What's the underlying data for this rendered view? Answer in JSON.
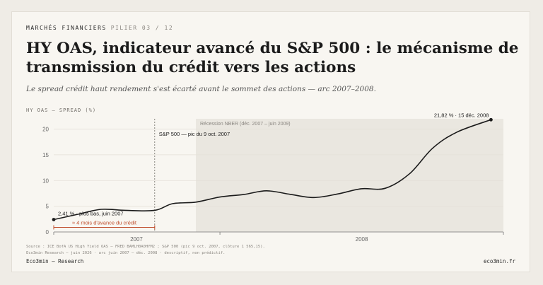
{
  "header": {
    "kicker": "MARCHÉS FINANCIERS",
    "kicker_sub": "PILIER 03 / 12",
    "title": "HY OAS, indicateur avancé du S&P 500 : le mécanisme de transmission du crédit vers les actions",
    "subtitle": "Le spread crédit haut rendement s'est écarté avant le sommet des actions — arc 2007–2008."
  },
  "chart_data": {
    "type": "line",
    "ylabel": "HY OAS — SPREAD (%)",
    "ylim": [
      0,
      22
    ],
    "yticks": [
      0,
      5,
      10,
      15,
      20
    ],
    "xlim": [
      "2007-06-01",
      "2008-12-31"
    ],
    "xticks": [
      "2007",
      "2008"
    ],
    "grid": true,
    "series": [
      {
        "color": "#1b1b1b",
        "points": [
          [
            "2007-06-01",
            2.41
          ],
          [
            "2007-07-01",
            3.4
          ],
          [
            "2007-08-01",
            4.4
          ],
          [
            "2007-09-01",
            4.2
          ],
          [
            "2007-10-09",
            4.2
          ],
          [
            "2007-11-01",
            5.5
          ],
          [
            "2007-12-01",
            5.8
          ],
          [
            "2008-01-01",
            6.8
          ],
          [
            "2008-02-01",
            7.3
          ],
          [
            "2008-03-01",
            8.0
          ],
          [
            "2008-04-01",
            7.3
          ],
          [
            "2008-05-01",
            6.7
          ],
          [
            "2008-06-01",
            7.4
          ],
          [
            "2008-07-01",
            8.4
          ],
          [
            "2008-08-01",
            8.5
          ],
          [
            "2008-09-01",
            11.3
          ],
          [
            "2008-10-01",
            16.3
          ],
          [
            "2008-11-01",
            19.4
          ],
          [
            "2008-12-15",
            21.82
          ]
        ]
      }
    ],
    "shaded_region": {
      "label": "Récession NBER (déc. 2007 – juin 2009)",
      "start": "2007-12-01",
      "color": "#eae7e0"
    },
    "vline": {
      "date": "2007-10-09",
      "label": "S&P 500 — pic du 9 oct. 2007"
    },
    "annotations": {
      "start_label": "2,41 % · plus bas, juin 2007",
      "end_label": "21,82 % · 15 déc. 2008",
      "lead_label": "≈ 4 mois d'avance du crédit",
      "lead_color": "#c0502f"
    }
  },
  "footer": {
    "source_line1": "Source : ICE BofA US High Yield OAS — FRED BAMLH0A0HYM2 ; S&P 500 (pic 9 oct. 2007, clôture 1 565,15).",
    "source_line2": "Eco3min Research — juin 2026 · arc juin 2007 – déc. 2008 · descriptif, non prédictif.",
    "brand": "Eco3min — Research",
    "site": "eco3min.fr"
  }
}
